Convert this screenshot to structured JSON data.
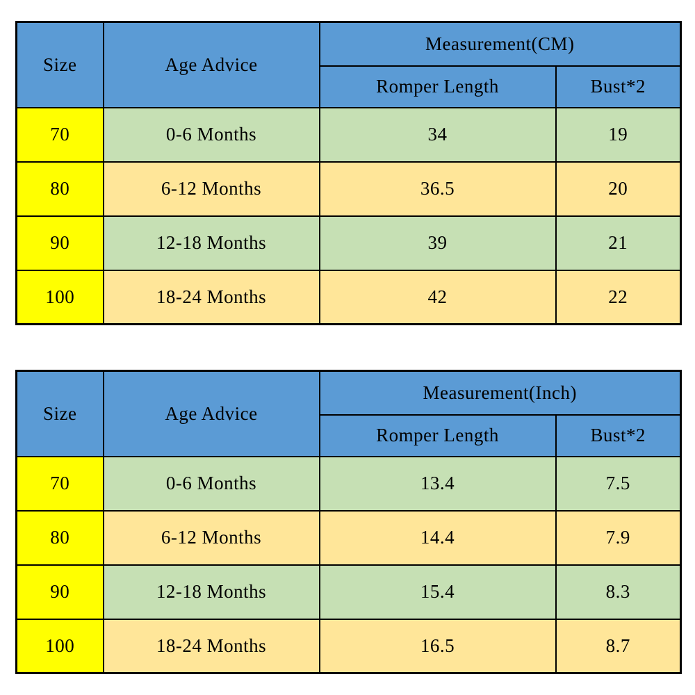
{
  "colors": {
    "header_blue": "#5b9bd5",
    "size_column_yellow": "#ffff00",
    "row_green": "#c6e0b4",
    "row_tan": "#ffe699",
    "border": "#000000"
  },
  "tables": [
    {
      "id": "cm",
      "headers": {
        "size": "Size",
        "age": "Age Advice",
        "measurement": "Measurement(CM)",
        "romper": "Romper Length",
        "bust": "Bust*2"
      },
      "rows": [
        {
          "size": "70",
          "age": "0-6 Months",
          "romper": "34",
          "bust": "19"
        },
        {
          "size": "80",
          "age": "6-12 Months",
          "romper": "36.5",
          "bust": "20"
        },
        {
          "size": "90",
          "age": "12-18 Months",
          "romper": "39",
          "bust": "21"
        },
        {
          "size": "100",
          "age": "18-24 Months",
          "romper": "42",
          "bust": "22"
        }
      ]
    },
    {
      "id": "inch",
      "headers": {
        "size": "Size",
        "age": "Age Advice",
        "measurement": "Measurement(Inch)",
        "romper": "Romper Length",
        "bust": "Bust*2"
      },
      "rows": [
        {
          "size": "70",
          "age": "0-6 Months",
          "romper": "13.4",
          "bust": "7.5"
        },
        {
          "size": "80",
          "age": "6-12 Months",
          "romper": "14.4",
          "bust": "7.9"
        },
        {
          "size": "90",
          "age": "12-18 Months",
          "romper": "15.4",
          "bust": "8.3"
        },
        {
          "size": "100",
          "age": "18-24 Months",
          "romper": "16.5",
          "bust": "8.7"
        }
      ]
    }
  ],
  "chart_data": [
    {
      "type": "table",
      "title": "Measurement(CM)",
      "columns": [
        "Size",
        "Age Advice",
        "Romper Length",
        "Bust*2"
      ],
      "rows": [
        [
          "70",
          "0-6 Months",
          34,
          19
        ],
        [
          "80",
          "6-12 Months",
          36.5,
          20
        ],
        [
          "90",
          "12-18 Months",
          39,
          21
        ],
        [
          "100",
          "18-24 Months",
          42,
          22
        ]
      ]
    },
    {
      "type": "table",
      "title": "Measurement(Inch)",
      "columns": [
        "Size",
        "Age Advice",
        "Romper Length",
        "Bust*2"
      ],
      "rows": [
        [
          "70",
          "0-6 Months",
          13.4,
          7.5
        ],
        [
          "80",
          "6-12 Months",
          14.4,
          7.9
        ],
        [
          "90",
          "12-18 Months",
          15.4,
          8.3
        ],
        [
          "100",
          "18-24 Months",
          16.5,
          8.7
        ]
      ]
    }
  ]
}
